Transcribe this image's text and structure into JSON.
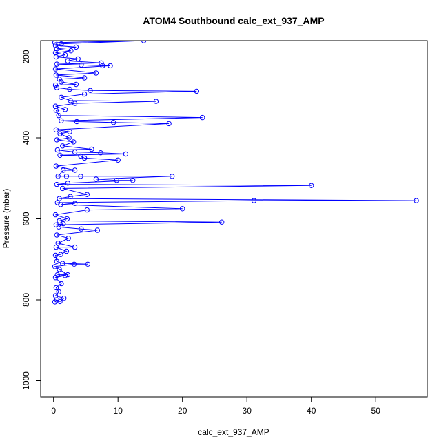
{
  "chart_data": {
    "type": "line",
    "title": "ATOM4 Southbound calc_ext_937_AMP",
    "xlabel": "calc_ext_937_AMP",
    "ylabel": "Pressure (mbar)",
    "xlim": [
      -2,
      58
    ],
    "ylim": [
      1040,
      160
    ],
    "y_reversed": true,
    "grid": false,
    "color": "#0000ff",
    "marker": "open-circle",
    "xticks": [
      "0",
      "10",
      "20",
      "30",
      "40",
      "50"
    ],
    "yticks": [
      "200",
      "400",
      "600",
      "800",
      "1000"
    ],
    "series": [
      {
        "points": [
          [
            0.2,
            805
          ],
          [
            0.5,
            800
          ],
          [
            1.0,
            804
          ],
          [
            1.6,
            796
          ],
          [
            0.3,
            790
          ],
          [
            0.8,
            780
          ],
          [
            0.4,
            770
          ],
          [
            1.2,
            760
          ],
          [
            0.3,
            745
          ],
          [
            1.8,
            740
          ],
          [
            0.6,
            738
          ],
          [
            2.2,
            738
          ],
          [
            0.9,
            725
          ],
          [
            0.2,
            718
          ],
          [
            3.2,
            712
          ],
          [
            5.3,
            712
          ],
          [
            1.4,
            710
          ],
          [
            0.5,
            705
          ],
          [
            0.3,
            690
          ],
          [
            1.1,
            688
          ],
          [
            2.0,
            680
          ],
          [
            0.4,
            670
          ],
          [
            3.3,
            670
          ],
          [
            0.7,
            660
          ],
          [
            2.3,
            648
          ],
          [
            0.5,
            640
          ],
          [
            6.8,
            628
          ],
          [
            4.3,
            625
          ],
          [
            0.8,
            620
          ],
          [
            1.5,
            612
          ],
          [
            0.4,
            615
          ],
          [
            26.1,
            608
          ],
          [
            0.9,
            605
          ],
          [
            2.1,
            600
          ],
          [
            0.3,
            590
          ],
          [
            5.2,
            578
          ],
          [
            20.0,
            575
          ],
          [
            1.1,
            565
          ],
          [
            3.3,
            562
          ],
          [
            0.6,
            560
          ],
          [
            31.1,
            555
          ],
          [
            56.3,
            555
          ],
          [
            0.9,
            550
          ],
          [
            2.6,
            545
          ],
          [
            5.2,
            540
          ],
          [
            1.4,
            525
          ],
          [
            40.0,
            518
          ],
          [
            0.5,
            515
          ],
          [
            2.2,
            512
          ],
          [
            12.3,
            505
          ],
          [
            9.8,
            505
          ],
          [
            6.6,
            502
          ],
          [
            18.4,
            495
          ],
          [
            4.2,
            495
          ],
          [
            2.0,
            495
          ],
          [
            0.7,
            495
          ],
          [
            1.5,
            480
          ],
          [
            3.3,
            480
          ],
          [
            0.4,
            470
          ],
          [
            10.0,
            455
          ],
          [
            4.8,
            450
          ],
          [
            4.2,
            445
          ],
          [
            1.0,
            443
          ],
          [
            11.2,
            440
          ],
          [
            7.3,
            437
          ],
          [
            3.3,
            435
          ],
          [
            0.6,
            430
          ],
          [
            5.9,
            428
          ],
          [
            1.4,
            420
          ],
          [
            3.1,
            410
          ],
          [
            0.5,
            405
          ],
          [
            2.4,
            400
          ],
          [
            1.0,
            390
          ],
          [
            2.5,
            385
          ],
          [
            0.4,
            380
          ],
          [
            17.9,
            365
          ],
          [
            9.3,
            362
          ],
          [
            3.6,
            360
          ],
          [
            1.2,
            358
          ],
          [
            23.1,
            350
          ],
          [
            0.8,
            345
          ],
          [
            0.4,
            332
          ],
          [
            1.8,
            330
          ],
          [
            0.3,
            322
          ],
          [
            3.3,
            315
          ],
          [
            15.9,
            310
          ],
          [
            2.6,
            308
          ],
          [
            1.2,
            300
          ],
          [
            4.8,
            292
          ],
          [
            22.2,
            285
          ],
          [
            5.7,
            283
          ],
          [
            2.5,
            280
          ],
          [
            0.5,
            276
          ],
          [
            0.3,
            270
          ],
          [
            3.5,
            268
          ],
          [
            1.2,
            262
          ],
          [
            0.9,
            255
          ],
          [
            4.8,
            252
          ],
          [
            0.4,
            245
          ],
          [
            6.6,
            240
          ],
          [
            0.3,
            230
          ],
          [
            8.8,
            222
          ],
          [
            7.6,
            222
          ],
          [
            4.3,
            220
          ],
          [
            0.5,
            218
          ],
          [
            7.4,
            215
          ],
          [
            2.2,
            210
          ],
          [
            3.8,
            205
          ],
          [
            0.4,
            200
          ],
          [
            1.8,
            195
          ],
          [
            0.3,
            190
          ],
          [
            2.7,
            185
          ],
          [
            0.5,
            180
          ],
          [
            3.5,
            176
          ],
          [
            0.3,
            172
          ],
          [
            1.2,
            168
          ],
          [
            14.0,
            160
          ],
          [
            0.2,
            165
          ]
        ]
      }
    ]
  }
}
